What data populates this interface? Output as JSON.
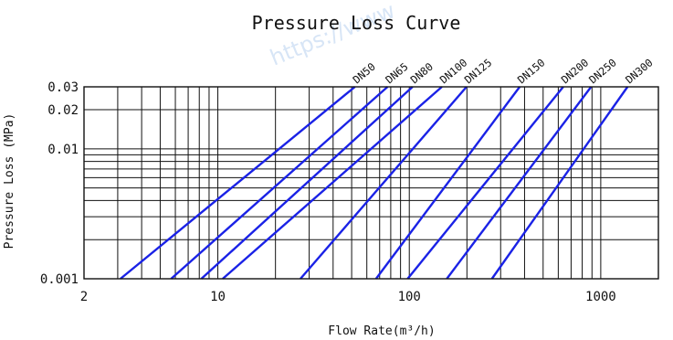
{
  "chart_data": {
    "type": "line",
    "title": "Pressure Loss Curve",
    "xlabel": "Flow Rate(m³/h)",
    "ylabel": "Pressure Loss (MPa)",
    "x_scale": "log",
    "y_scale": "log",
    "xlim": [
      2,
      2000
    ],
    "ylim": [
      0.001,
      0.03
    ],
    "x_ticks": [
      {
        "value": 2,
        "label": "2"
      },
      {
        "value": 10,
        "label": "10"
      },
      {
        "value": 100,
        "label": "100"
      },
      {
        "value": 1000,
        "label": "1000"
      }
    ],
    "y_ticks": [
      {
        "value": 0.001,
        "label": "0.001"
      },
      {
        "value": 0.01,
        "label": "0.01"
      },
      {
        "value": 0.02,
        "label": "0.02"
      },
      {
        "value": 0.03,
        "label": "0.03"
      }
    ],
    "grid": true,
    "series": [
      {
        "name": "DN50",
        "x": [
          3.1,
          52
        ],
        "y": [
          0.001,
          0.03
        ]
      },
      {
        "name": "DN65",
        "x": [
          5.7,
          77
        ],
        "y": [
          0.001,
          0.03
        ]
      },
      {
        "name": "DN80",
        "x": [
          8.2,
          104
        ],
        "y": [
          0.001,
          0.03
        ]
      },
      {
        "name": "DN100",
        "x": [
          10.6,
          148
        ],
        "y": [
          0.001,
          0.03
        ]
      },
      {
        "name": "DN125",
        "x": [
          27,
          199
        ],
        "y": [
          0.001,
          0.03
        ]
      },
      {
        "name": "DN150",
        "x": [
          67,
          377
        ],
        "y": [
          0.001,
          0.03
        ]
      },
      {
        "name": "DN200",
        "x": [
          98,
          637
        ],
        "y": [
          0.001,
          0.03
        ]
      },
      {
        "name": "DN250",
        "x": [
          157,
          890
        ],
        "y": [
          0.001,
          0.03
        ]
      },
      {
        "name": "DN300",
        "x": [
          270,
          1380
        ],
        "y": [
          0.001,
          0.03
        ]
      }
    ]
  },
  "watermark": "https://www"
}
